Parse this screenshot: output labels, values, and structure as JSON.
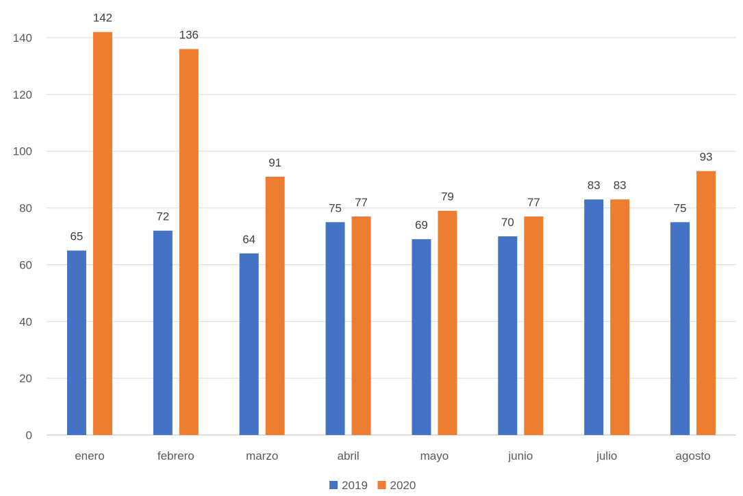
{
  "chart_data": {
    "type": "bar",
    "categories": [
      "enero",
      "febrero",
      "marzo",
      "abril",
      "mayo",
      "junio",
      "julio",
      "agosto"
    ],
    "series": [
      {
        "name": "2019",
        "color": "#4472C4",
        "values": [
          65,
          72,
          64,
          75,
          69,
          70,
          83,
          75
        ]
      },
      {
        "name": "2020",
        "color": "#ED7D31",
        "values": [
          142,
          136,
          91,
          77,
          79,
          77,
          83,
          93
        ]
      }
    ],
    "ylim": [
      0,
      150
    ],
    "yticks": [
      0,
      20,
      40,
      60,
      80,
      100,
      120,
      140
    ],
    "grid": true,
    "data_labels": true,
    "legend_position": "bottom"
  }
}
